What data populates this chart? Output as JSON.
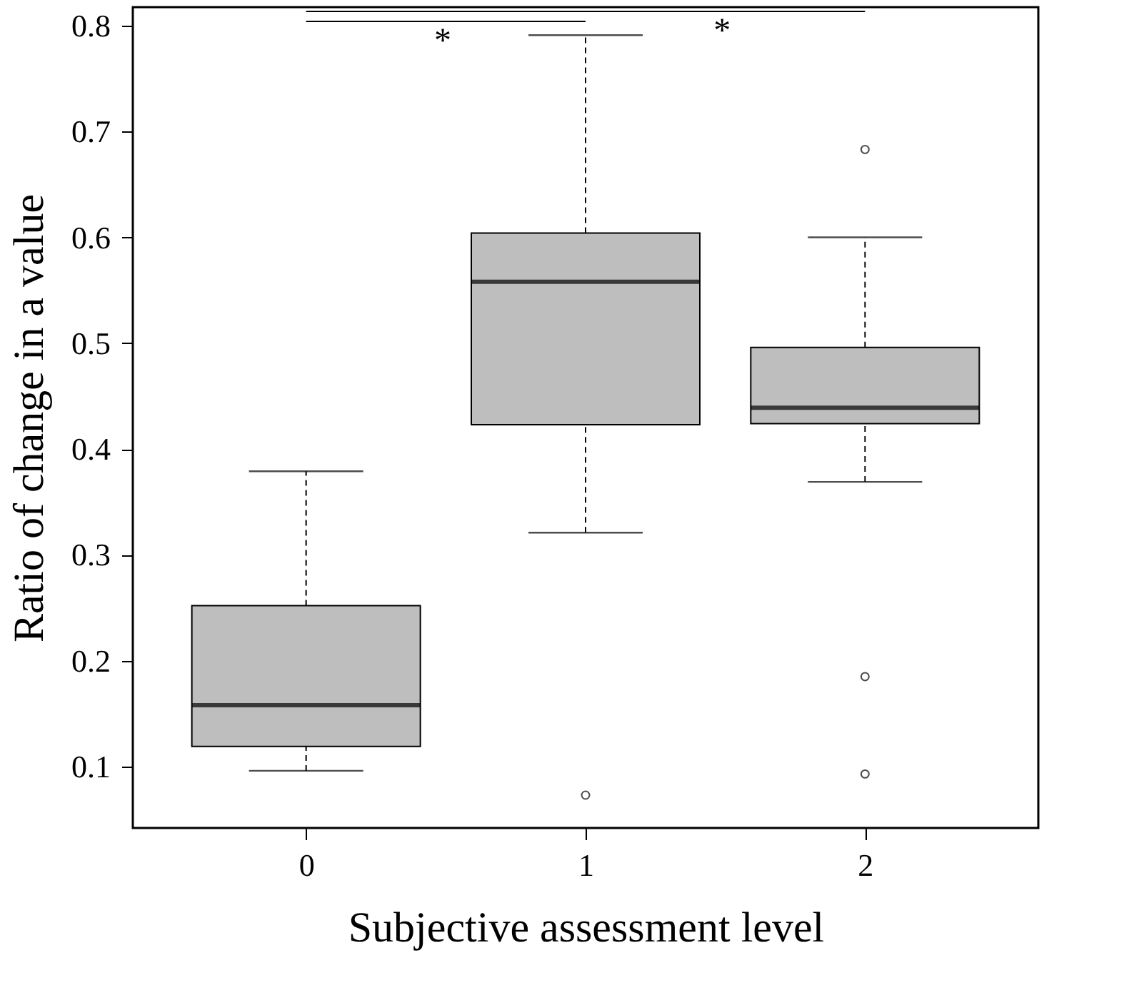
{
  "chart_data": {
    "type": "box",
    "xlabel": "Subjective assessment level",
    "ylabel": "Ratio of change in a value",
    "categories": [
      "0",
      "1",
      "2"
    ],
    "color": "#bebebe",
    "boxes": [
      {
        "low": 0.096,
        "q1": 0.119,
        "median": 0.158,
        "q3": 0.252,
        "high": 0.379
      },
      {
        "low": 0.321,
        "q1": 0.423,
        "median": 0.558,
        "q3": 0.604,
        "high": 0.791,
        "outliers": [
          0.073
        ]
      },
      {
        "low": 0.369,
        "q1": 0.424,
        "median": 0.439,
        "q3": 0.496,
        "high": 0.6,
        "outliers": [
          0.683,
          0.185,
          0.093
        ]
      }
    ],
    "ylim": [
      0.042,
      0.8175
    ],
    "yticks": [
      0.1,
      0.2,
      0.3,
      0.4,
      0.5,
      0.6,
      0.7,
      0.8
    ],
    "annotations": [
      "*",
      "*"
    ],
    "grid": false
  }
}
